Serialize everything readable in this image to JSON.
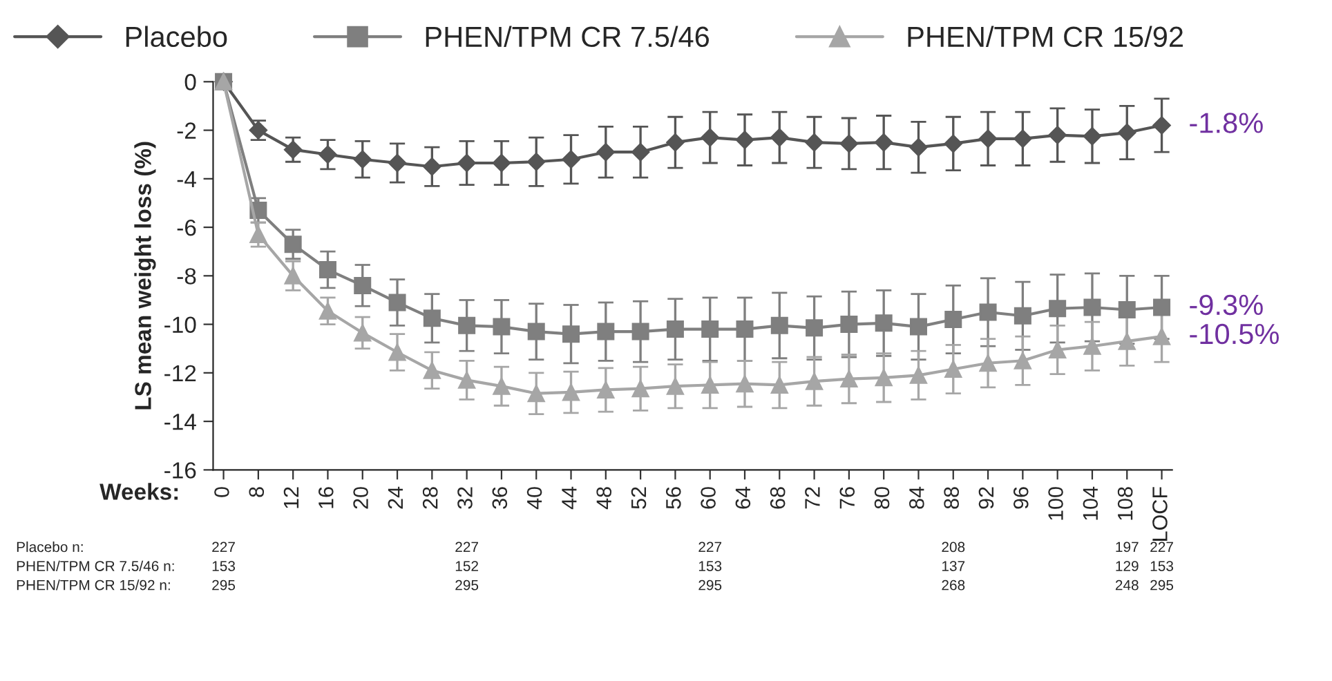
{
  "chart_data": {
    "type": "line",
    "xlabel": "Weeks:",
    "ylabel": "LS mean weight loss (%)",
    "categories": [
      "0",
      "8",
      "12",
      "16",
      "20",
      "24",
      "28",
      "32",
      "36",
      "40",
      "44",
      "48",
      "52",
      "56",
      "60",
      "64",
      "68",
      "72",
      "76",
      "80",
      "84",
      "88",
      "92",
      "96",
      "100",
      "104",
      "108",
      "LOCF"
    ],
    "series": [
      {
        "name": "Placebo",
        "color": "#555555",
        "marker": "diamond",
        "values": [
          0,
          -2.0,
          -2.8,
          -3.0,
          -3.2,
          -3.35,
          -3.5,
          -3.35,
          -3.35,
          -3.3,
          -3.2,
          -2.9,
          -2.9,
          -2.5,
          -2.3,
          -2.4,
          -2.3,
          -2.5,
          -2.55,
          -2.5,
          -2.7,
          -2.55,
          -2.35,
          -2.35,
          -2.2,
          -2.25,
          -2.1,
          -1.8
        ],
        "errors": [
          null,
          0.4,
          0.5,
          0.6,
          0.75,
          0.8,
          0.8,
          0.9,
          0.9,
          1.0,
          1.0,
          1.05,
          1.05,
          1.05,
          1.05,
          1.05,
          1.05,
          1.05,
          1.05,
          1.1,
          1.05,
          1.1,
          1.1,
          1.1,
          1.1,
          1.1,
          1.1,
          1.1
        ]
      },
      {
        "name": "PHEN/TPM CR 7.5/46",
        "color": "#7f7f7f",
        "marker": "square",
        "values": [
          0,
          -5.3,
          -6.7,
          -7.75,
          -8.4,
          -9.1,
          -9.75,
          -10.05,
          -10.1,
          -10.3,
          -10.4,
          -10.3,
          -10.3,
          -10.2,
          -10.2,
          -10.2,
          -10.05,
          -10.15,
          -10.0,
          -9.95,
          -10.1,
          -9.8,
          -9.5,
          -9.65,
          -9.35,
          -9.3,
          -9.4,
          -9.3
        ],
        "errors": [
          null,
          0.5,
          0.6,
          0.75,
          0.85,
          0.95,
          1.0,
          1.05,
          1.1,
          1.15,
          1.2,
          1.2,
          1.25,
          1.25,
          1.3,
          1.3,
          1.35,
          1.3,
          1.35,
          1.35,
          1.35,
          1.4,
          1.4,
          1.4,
          1.4,
          1.4,
          1.4,
          1.3
        ]
      },
      {
        "name": "PHEN/TPM CR 15/92",
        "color": "#a6a6a6",
        "marker": "triangle",
        "values": [
          0,
          -6.3,
          -8.0,
          -9.45,
          -10.35,
          -11.15,
          -11.9,
          -12.3,
          -12.55,
          -12.85,
          -12.8,
          -12.7,
          -12.65,
          -12.55,
          -12.5,
          -12.45,
          -12.5,
          -12.35,
          -12.25,
          -12.2,
          -12.1,
          -11.85,
          -11.6,
          -11.5,
          -11.05,
          -10.9,
          -10.7,
          -10.5
        ],
        "errors": [
          null,
          0.5,
          0.6,
          0.55,
          0.65,
          0.75,
          0.75,
          0.8,
          0.8,
          0.85,
          0.85,
          0.9,
          0.9,
          0.9,
          0.95,
          0.95,
          0.95,
          1.0,
          1.0,
          1.0,
          1.0,
          1.0,
          1.0,
          1.0,
          1.0,
          1.0,
          1.0,
          1.05
        ]
      }
    ],
    "ylim": [
      -16,
      0
    ],
    "yticks": [
      -16,
      -14,
      -12,
      -10,
      -8,
      -6,
      -4,
      -2,
      0
    ],
    "grid": false,
    "legend": "top",
    "line_style": "solid",
    "annotations": [
      {
        "text": "-1.8%",
        "x": "LOCF",
        "y": -1.8
      },
      {
        "text": "-9.3%",
        "x": "LOCF",
        "y": -9.3
      },
      {
        "text": "-10.5%",
        "x": "LOCF",
        "y": -10.5
      },
      "Placebo n:",
      "227",
      "227",
      "227",
      "208",
      "197",
      "227",
      "PHEN/TPM CR 7.5/46 n:",
      "153",
      "152",
      "153",
      "137",
      "129",
      "153",
      "PHEN/TPM CR 15/92 n:",
      "295",
      "295",
      "295",
      "268",
      "248",
      "295"
    ]
  }
}
